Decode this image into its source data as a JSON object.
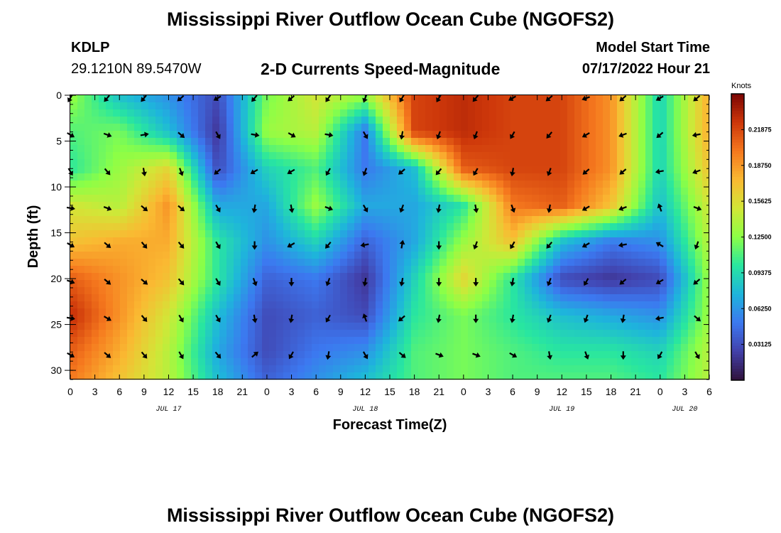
{
  "header": {
    "title": "Mississippi River Outflow Ocean Cube (NGOFS2)",
    "station": "KDLP",
    "coords": "29.1210N  89.5470W",
    "subtitle": "2-D Currents Speed-Magnitude",
    "model_start_label": "Model Start Time",
    "model_start_value": "07/17/2022 Hour 21",
    "second_title": "Mississippi River Outflow Ocean Cube (NGOFS2)"
  },
  "chart_data": {
    "type": "heatmap",
    "title": "2-D Currents Speed-Magnitude",
    "xlabel": "Forecast Time(Z)",
    "ylabel": "Depth (ft)",
    "x_ticks": [
      "0",
      "3",
      "6",
      "9",
      "12",
      "15",
      "18",
      "21",
      "0",
      "3",
      "6",
      "9",
      "12",
      "15",
      "18",
      "21",
      "0",
      "3",
      "6",
      "9",
      "12",
      "15",
      "18",
      "21",
      "0",
      "3",
      "6"
    ],
    "x_range_hours": [
      0,
      78
    ],
    "date_labels": [
      {
        "label": "JUL 17",
        "hour": 12
      },
      {
        "label": "JUL 18",
        "hour": 36
      },
      {
        "label": "JUL 19",
        "hour": 60
      },
      {
        "label": "JUL 20",
        "hour": 75
      }
    ],
    "y_ticks": [
      "0",
      "5",
      "10",
      "15",
      "20",
      "25",
      "30"
    ],
    "y_range_ft": [
      0,
      31
    ],
    "colorbar": {
      "title": "Knots",
      "ticks": [
        "0.03125",
        "0.06250",
        "0.09375",
        "0.12500",
        "0.15625",
        "0.18750",
        "0.21875"
      ],
      "range": [
        0.0,
        0.25
      ]
    },
    "speed_grid_ft_rows": [
      0,
      4,
      8,
      12,
      16,
      20,
      24,
      28,
      31
    ],
    "speed_grid_hour_cols": [
      0,
      6,
      12,
      18,
      24,
      30,
      36,
      42,
      48,
      54,
      60,
      66,
      72,
      78
    ],
    "speed_grid_knots": [
      [
        0.13,
        0.08,
        0.06,
        0.03,
        0.12,
        0.15,
        0.13,
        0.22,
        0.23,
        0.22,
        0.22,
        0.19,
        0.09,
        0.18
      ],
      [
        0.11,
        0.12,
        0.08,
        0.02,
        0.13,
        0.14,
        0.05,
        0.22,
        0.23,
        0.22,
        0.22,
        0.19,
        0.09,
        0.18
      ],
      [
        0.1,
        0.13,
        0.16,
        0.03,
        0.09,
        0.11,
        0.05,
        0.08,
        0.21,
        0.22,
        0.22,
        0.19,
        0.09,
        0.17
      ],
      [
        0.15,
        0.14,
        0.19,
        0.07,
        0.07,
        0.13,
        0.07,
        0.07,
        0.1,
        0.2,
        0.21,
        0.17,
        0.08,
        0.15
      ],
      [
        0.17,
        0.18,
        0.18,
        0.1,
        0.06,
        0.09,
        0.04,
        0.07,
        0.13,
        0.17,
        0.08,
        0.05,
        0.06,
        0.14
      ],
      [
        0.21,
        0.19,
        0.17,
        0.1,
        0.04,
        0.05,
        0.02,
        0.09,
        0.16,
        0.1,
        0.03,
        0.02,
        0.03,
        0.13
      ],
      [
        0.23,
        0.19,
        0.15,
        0.08,
        0.03,
        0.04,
        0.03,
        0.1,
        0.12,
        0.1,
        0.08,
        0.07,
        0.06,
        0.13
      ],
      [
        0.21,
        0.18,
        0.14,
        0.07,
        0.03,
        0.05,
        0.06,
        0.11,
        0.12,
        0.11,
        0.1,
        0.1,
        0.09,
        0.14
      ],
      [
        0.2,
        0.17,
        0.14,
        0.08,
        0.04,
        0.06,
        0.08,
        0.11,
        0.12,
        0.11,
        0.11,
        0.11,
        0.1,
        0.14
      ]
    ],
    "vector_depths_ft": [
      0,
      4,
      8,
      12,
      16,
      20,
      24,
      28
    ],
    "vector_hours": [
      0,
      4.5,
      9,
      13.5,
      18,
      22.5,
      27,
      31.5,
      36,
      40.5,
      45,
      49.5,
      54,
      58.5,
      63,
      67.5,
      72,
      76.5
    ],
    "vector_direction_deg": [
      [
        120,
        130,
        130,
        140,
        150,
        130,
        140,
        125,
        110,
        120,
        120,
        130,
        150,
        140,
        160,
        140,
        150,
        140
      ],
      [
        30,
        20,
        -10,
        40,
        60,
        10,
        30,
        10,
        60,
        100,
        110,
        110,
        120,
        130,
        150,
        160,
        140,
        170
      ],
      [
        60,
        50,
        80,
        70,
        140,
        150,
        150,
        120,
        110,
        140,
        130,
        120,
        100,
        110,
        140,
        140,
        170,
        160
      ],
      [
        10,
        20,
        40,
        40,
        60,
        100,
        80,
        20,
        60,
        110,
        100,
        80,
        70,
        100,
        150,
        160,
        -110,
        20
      ],
      [
        30,
        40,
        50,
        50,
        60,
        90,
        150,
        130,
        170,
        -80,
        90,
        110,
        120,
        130,
        150,
        170,
        -150,
        110
      ],
      [
        20,
        40,
        40,
        50,
        60,
        70,
        90,
        110,
        100,
        100,
        90,
        90,
        100,
        110,
        120,
        140,
        150,
        140
      ],
      [
        10,
        30,
        50,
        60,
        60,
        80,
        100,
        120,
        -110,
        140,
        100,
        90,
        100,
        110,
        110,
        100,
        170,
        40
      ],
      [
        30,
        40,
        50,
        60,
        50,
        -40,
        120,
        100,
        60,
        40,
        20,
        20,
        30,
        80,
        70,
        90,
        120,
        60
      ]
    ]
  }
}
